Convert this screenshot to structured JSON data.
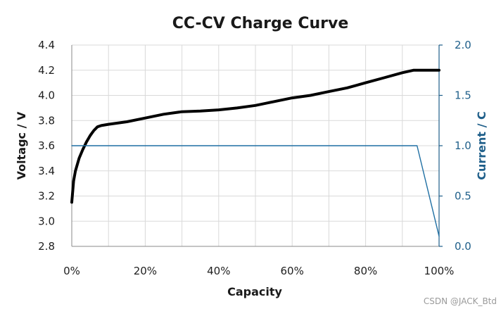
{
  "chart_data": {
    "type": "line",
    "title": "CC-CV Charge Curve",
    "xlabel": "Capacity",
    "ylabel": "Voltagc / V",
    "y2label": "Current / C",
    "xlim": [
      0,
      100
    ],
    "ylim": [
      2.8,
      4.4
    ],
    "y2lim": [
      0,
      2.0
    ],
    "x_ticks": [
      "0%",
      "20%",
      "40%",
      "60%",
      "80%",
      "100%"
    ],
    "x_tick_values": [
      0,
      20,
      40,
      60,
      80,
      100
    ],
    "y_ticks": [
      "2.8",
      "3.0",
      "3.2",
      "3.4",
      "3.6",
      "3.8",
      "4.0",
      "4.2",
      "4.4"
    ],
    "y_tick_values": [
      2.8,
      3.0,
      3.2,
      3.4,
      3.6,
      3.8,
      4.0,
      4.2,
      4.4
    ],
    "y2_ticks": [
      "0.0",
      "0.5",
      "1.0",
      "1.5",
      "2.0"
    ],
    "y2_tick_values": [
      0,
      0.5,
      1.0,
      1.5,
      2.0
    ],
    "grid": true,
    "colors": {
      "voltage": "#000000",
      "current": "#1f6fa3",
      "grid": "#d9d9d9",
      "right_axis": "#1f5f8a"
    },
    "series": [
      {
        "name": "Voltage",
        "axis": "left",
        "x": [
          0,
          0.5,
          1,
          2,
          3,
          4,
          5,
          6,
          7,
          8,
          10,
          15,
          20,
          25,
          30,
          35,
          40,
          45,
          50,
          55,
          60,
          65,
          70,
          75,
          80,
          85,
          90,
          93,
          95,
          100
        ],
        "values": [
          3.15,
          3.32,
          3.4,
          3.5,
          3.57,
          3.63,
          3.68,
          3.72,
          3.75,
          3.76,
          3.77,
          3.79,
          3.82,
          3.85,
          3.87,
          3.875,
          3.885,
          3.9,
          3.92,
          3.95,
          3.98,
          4.0,
          4.03,
          4.06,
          4.1,
          4.14,
          4.18,
          4.2,
          4.2,
          4.2
        ]
      },
      {
        "name": "Current",
        "axis": "right",
        "x": [
          0,
          94,
          100
        ],
        "values": [
          1.0,
          1.0,
          0.1
        ]
      }
    ]
  },
  "watermark": "CSDN @JACK_Btd"
}
